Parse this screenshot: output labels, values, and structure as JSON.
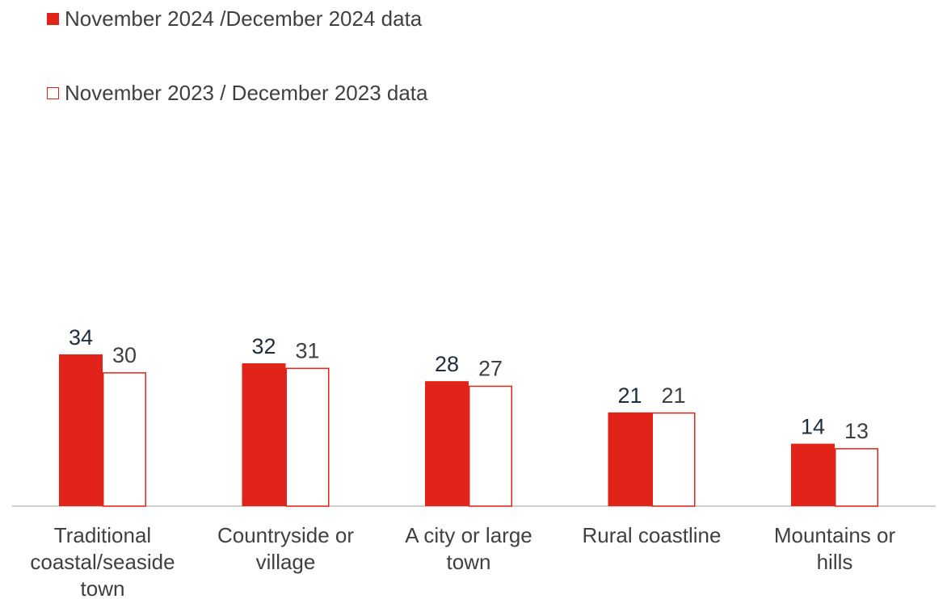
{
  "chart_data": {
    "type": "bar",
    "categories": [
      "Traditional coastal/seaside town",
      "Countryside or village",
      "A city or large town",
      "Rural coastline",
      "Mountains or hills"
    ],
    "series": [
      {
        "name": "November 2024 /December  2024 data",
        "values": [
          34,
          32,
          28,
          21,
          14
        ],
        "color": "#e2231a",
        "fill": "solid"
      },
      {
        "name": "November 2023 / December 2023 data",
        "values": [
          30,
          31,
          27,
          21,
          13
        ],
        "color": "#e2231a",
        "fill": "outline"
      }
    ],
    "ylim": [
      0,
      40
    ],
    "grid": false,
    "legend_position": "top-left",
    "data_labels": true,
    "colors": {
      "label_series_1": "#1f2d3d",
      "label_series_2": "#404040",
      "axis": "#bfbfbf"
    }
  }
}
